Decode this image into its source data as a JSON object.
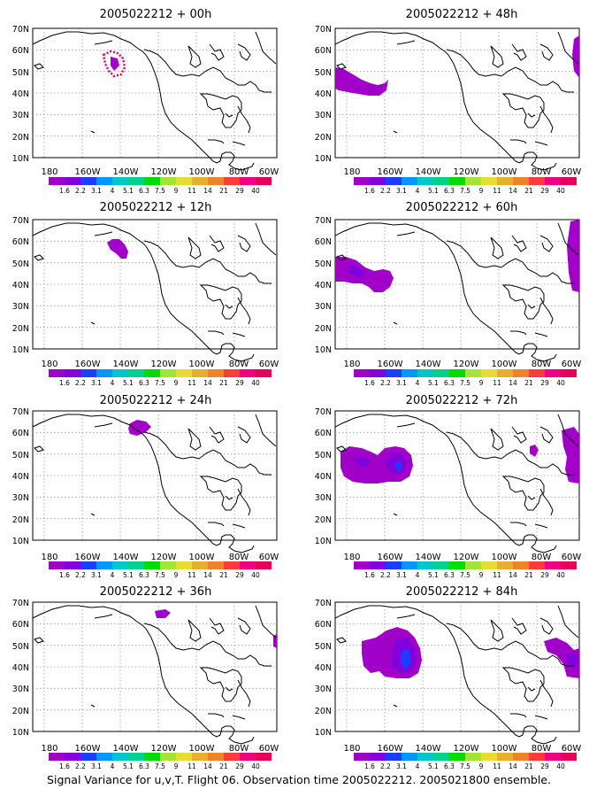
{
  "panels": [
    {
      "title": "2005022212 + 00h"
    },
    {
      "title": "2005022212 + 48h"
    },
    {
      "title": "2005022212 + 12h"
    },
    {
      "title": "2005022212 + 60h"
    },
    {
      "title": "2005022212 + 24h"
    },
    {
      "title": "2005022212 + 72h"
    },
    {
      "title": "2005022212 + 36h"
    },
    {
      "title": "2005022212 + 84h"
    }
  ],
  "map": {
    "lat_labels": [
      "70N",
      "60N",
      "50N",
      "40N",
      "30N",
      "20N",
      "10N"
    ],
    "lon_labels": [
      "180",
      "160W",
      "140W",
      "120W",
      "100W",
      "80W",
      "60W"
    ],
    "grid": true
  },
  "colorbar": {
    "labels": [
      "1.6",
      "2.2",
      "3.1",
      "4",
      "5.1",
      "6.3",
      "7.5",
      "9",
      "11",
      "14",
      "21",
      "29",
      "40"
    ],
    "colors": [
      "#a000c8",
      "#8200dc",
      "#1e3cff",
      "#0096ff",
      "#00c8c8",
      "#00d28c",
      "#00dc00",
      "#a0e632",
      "#e6dc32",
      "#e6af2d",
      "#f08228",
      "#fa3c3c",
      "#f00082",
      "#e6005a"
    ]
  },
  "caption": "Signal Variance for u,v,T. Flight 06. Observation time 2005022212. 2005021800 ensemble."
}
